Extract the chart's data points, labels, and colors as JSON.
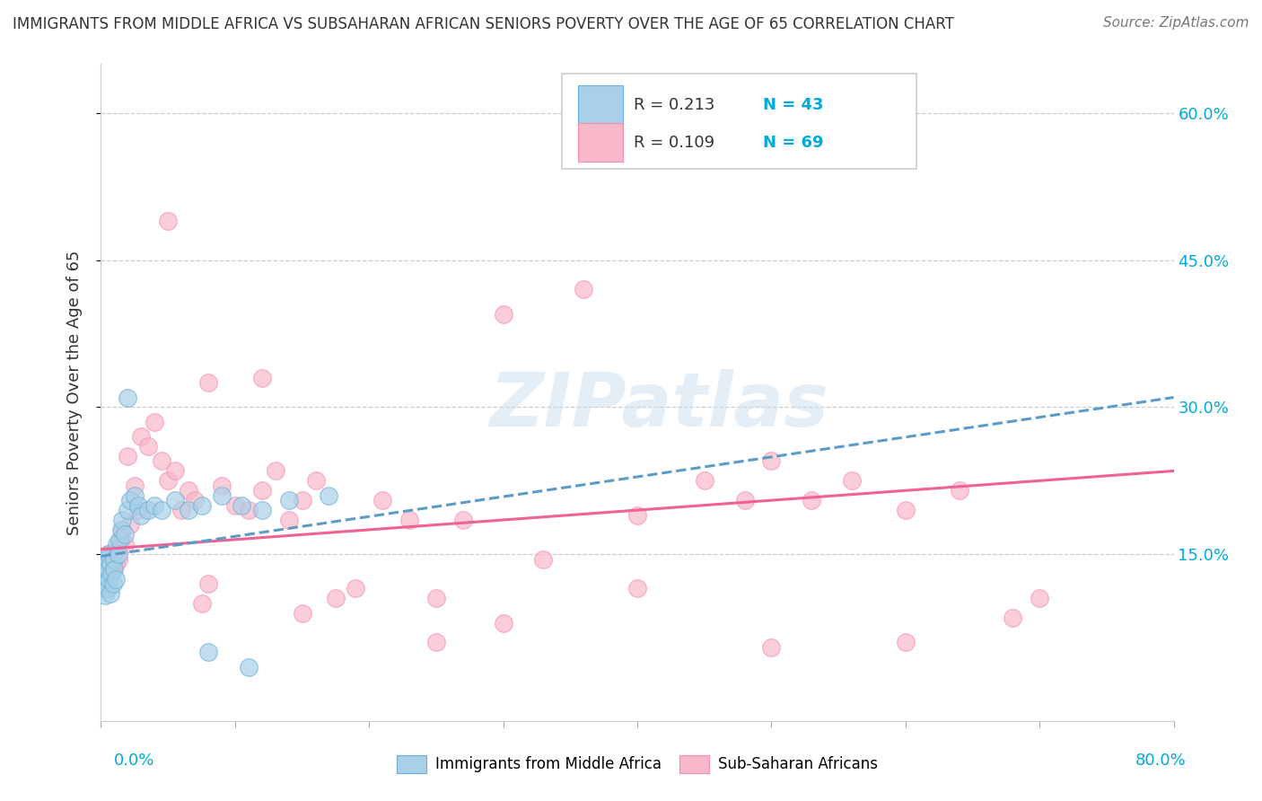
{
  "title": "IMMIGRANTS FROM MIDDLE AFRICA VS SUBSAHARAN AFRICAN SENIORS POVERTY OVER THE AGE OF 65 CORRELATION CHART",
  "source": "Source: ZipAtlas.com",
  "ylabel": "Seniors Poverty Over the Age of 65",
  "xlim": [
    0.0,
    0.8
  ],
  "ylim": [
    -0.02,
    0.65
  ],
  "yticks": [
    0.15,
    0.3,
    0.45,
    0.6
  ],
  "ytick_labels": [
    "15.0%",
    "30.0%",
    "45.0%",
    "60.0%"
  ],
  "blue_color": "#a8d0e8",
  "blue_edge_color": "#6baed6",
  "blue_line_color": "#5b9bc7",
  "pink_color": "#f9b8c9",
  "pink_edge_color": "#f48fb1",
  "pink_line_color": "#f06292",
  "label_color": "#00aadd",
  "watermark": "ZIPatlas",
  "blue_x": [
    0.001,
    0.002,
    0.002,
    0.003,
    0.003,
    0.004,
    0.004,
    0.005,
    0.005,
    0.006,
    0.006,
    0.007,
    0.007,
    0.008,
    0.009,
    0.01,
    0.01,
    0.011,
    0.012,
    0.013,
    0.014,
    0.015,
    0.016,
    0.018,
    0.02,
    0.022,
    0.025,
    0.028,
    0.03,
    0.035,
    0.04,
    0.045,
    0.055,
    0.065,
    0.075,
    0.09,
    0.105,
    0.12,
    0.14,
    0.17,
    0.02,
    0.08,
    0.11
  ],
  "blue_y": [
    0.115,
    0.125,
    0.14,
    0.108,
    0.13,
    0.12,
    0.145,
    0.115,
    0.135,
    0.125,
    0.15,
    0.11,
    0.14,
    0.13,
    0.12,
    0.145,
    0.135,
    0.125,
    0.16,
    0.15,
    0.165,
    0.175,
    0.185,
    0.17,
    0.195,
    0.205,
    0.21,
    0.2,
    0.19,
    0.195,
    0.2,
    0.195,
    0.205,
    0.195,
    0.2,
    0.21,
    0.2,
    0.195,
    0.205,
    0.21,
    0.31,
    0.05,
    0.035
  ],
  "pink_x": [
    0.001,
    0.002,
    0.003,
    0.004,
    0.004,
    0.005,
    0.005,
    0.006,
    0.007,
    0.008,
    0.009,
    0.01,
    0.011,
    0.012,
    0.013,
    0.015,
    0.016,
    0.018,
    0.02,
    0.022,
    0.025,
    0.028,
    0.03,
    0.035,
    0.04,
    0.045,
    0.05,
    0.055,
    0.06,
    0.065,
    0.07,
    0.075,
    0.08,
    0.09,
    0.1,
    0.11,
    0.12,
    0.13,
    0.14,
    0.15,
    0.16,
    0.175,
    0.19,
    0.21,
    0.23,
    0.25,
    0.27,
    0.3,
    0.33,
    0.36,
    0.4,
    0.45,
    0.48,
    0.5,
    0.53,
    0.56,
    0.6,
    0.64,
    0.68,
    0.7,
    0.4,
    0.3,
    0.5,
    0.6,
    0.15,
    0.25,
    0.05,
    0.08,
    0.12
  ],
  "pink_y": [
    0.13,
    0.14,
    0.125,
    0.145,
    0.135,
    0.12,
    0.15,
    0.14,
    0.13,
    0.145,
    0.135,
    0.15,
    0.14,
    0.155,
    0.145,
    0.165,
    0.175,
    0.16,
    0.25,
    0.18,
    0.22,
    0.195,
    0.27,
    0.26,
    0.285,
    0.245,
    0.225,
    0.235,
    0.195,
    0.215,
    0.205,
    0.1,
    0.12,
    0.22,
    0.2,
    0.195,
    0.215,
    0.235,
    0.185,
    0.205,
    0.225,
    0.105,
    0.115,
    0.205,
    0.185,
    0.105,
    0.185,
    0.395,
    0.145,
    0.42,
    0.19,
    0.225,
    0.205,
    0.245,
    0.205,
    0.225,
    0.195,
    0.215,
    0.085,
    0.105,
    0.115,
    0.08,
    0.055,
    0.06,
    0.09,
    0.06,
    0.49,
    0.325,
    0.33
  ],
  "blue_trend_x": [
    0.0,
    0.8
  ],
  "blue_trend_y": [
    0.148,
    0.31
  ],
  "pink_trend_x": [
    0.0,
    0.8
  ],
  "pink_trend_y": [
    0.155,
    0.235
  ]
}
